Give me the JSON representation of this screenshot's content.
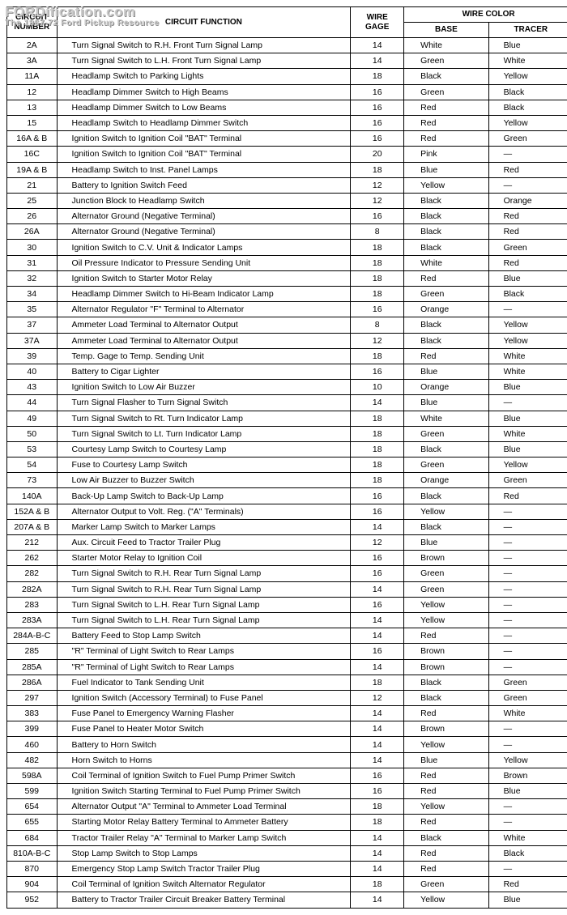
{
  "watermark": {
    "line1": "FORDification.com",
    "line2": "The 1967-72 Ford Pickup Resource"
  },
  "headers": {
    "circuit_number": "CIRCUIT\nNUMBER",
    "circuit_function": "CIRCUIT FUNCTION",
    "wire_gage": "WIRE\nGAGE",
    "wire_color": "WIRE COLOR",
    "base": "BASE",
    "tracer": "TRACER"
  },
  "rows": [
    {
      "num": "2A",
      "func": "Turn Signal Switch to R.H. Front Turn Signal Lamp",
      "gage": "14",
      "base": "White",
      "tracer": "Blue"
    },
    {
      "num": "3A",
      "func": "Turn Signal Switch to L.H. Front Turn Signal Lamp",
      "gage": "14",
      "base": "Green",
      "tracer": "White"
    },
    {
      "num": "11A",
      "func": "Headlamp Switch to Parking Lights",
      "gage": "18",
      "base": "Black",
      "tracer": "Yellow"
    },
    {
      "num": "12",
      "func": "Headlamp Dimmer Switch to High Beams",
      "gage": "16",
      "base": "Green",
      "tracer": "Black"
    },
    {
      "num": "13",
      "func": "Headlamp Dimmer Switch to Low Beams",
      "gage": "16",
      "base": "Red",
      "tracer": "Black"
    },
    {
      "num": "15",
      "func": "Headlamp Switch to Headlamp Dimmer Switch",
      "gage": "16",
      "base": "Red",
      "tracer": "Yellow"
    },
    {
      "num": "16A & B",
      "func": "Ignition Switch to Ignition Coil \"BAT\" Terminal",
      "gage": "16",
      "base": "Red",
      "tracer": "Green"
    },
    {
      "num": "16C",
      "func": "Ignition Switch to Ignition Coil \"BAT\" Terminal",
      "gage": "20",
      "base": "Pink",
      "tracer": "—"
    },
    {
      "num": "19A & B",
      "func": "Headlamp Switch to Inst. Panel Lamps",
      "gage": "18",
      "base": "Blue",
      "tracer": "Red"
    },
    {
      "num": "21",
      "func": "Battery to Ignition Switch Feed",
      "gage": "12",
      "base": "Yellow",
      "tracer": "—"
    },
    {
      "num": "25",
      "func": "Junction Block to Headlamp Switch",
      "gage": "12",
      "base": "Black",
      "tracer": "Orange"
    },
    {
      "num": "26",
      "func": "Alternator Ground (Negative Terminal)",
      "gage": "16",
      "base": "Black",
      "tracer": "Red"
    },
    {
      "num": "26A",
      "func": "Alternator Ground (Negative Terminal)",
      "gage": "8",
      "base": "Black",
      "tracer": "Red"
    },
    {
      "num": "30",
      "func": "Ignition Switch to C.V. Unit & Indicator Lamps",
      "gage": "18",
      "base": "Black",
      "tracer": "Green"
    },
    {
      "num": "31",
      "func": "Oil Pressure Indicator to Pressure Sending Unit",
      "gage": "18",
      "base": "White",
      "tracer": "Red"
    },
    {
      "num": "32",
      "func": "Ignition Switch to Starter Motor Relay",
      "gage": "18",
      "base": "Red",
      "tracer": "Blue"
    },
    {
      "num": "34",
      "func": "Headlamp Dimmer Switch to Hi-Beam Indicator Lamp",
      "gage": "18",
      "base": "Green",
      "tracer": "Black"
    },
    {
      "num": "35",
      "func": "Alternator Regulator \"F\" Terminal to Alternator",
      "gage": "16",
      "base": "Orange",
      "tracer": "—"
    },
    {
      "num": "37",
      "func": "Ammeter Load Terminal to Alternator Output",
      "gage": "8",
      "base": "Black",
      "tracer": "Yellow"
    },
    {
      "num": "37A",
      "func": "Ammeter Load Terminal to Alternator Output",
      "gage": "12",
      "base": "Black",
      "tracer": "Yellow"
    },
    {
      "num": "39",
      "func": "Temp. Gage to Temp. Sending Unit",
      "gage": "18",
      "base": "Red",
      "tracer": "White"
    },
    {
      "num": "40",
      "func": "Battery to Cigar Lighter",
      "gage": "16",
      "base": "Blue",
      "tracer": "White"
    },
    {
      "num": "43",
      "func": "Ignition Switch to Low Air Buzzer",
      "gage": "10",
      "base": "Orange",
      "tracer": "Blue"
    },
    {
      "num": "44",
      "func": "Turn Signal Flasher to Turn Signal Switch",
      "gage": "14",
      "base": "Blue",
      "tracer": "—"
    },
    {
      "num": "49",
      "func": "Turn Signal Switch to Rt. Turn Indicator Lamp",
      "gage": "18",
      "base": "White",
      "tracer": "Blue"
    },
    {
      "num": "50",
      "func": "Turn Signal Switch to Lt. Turn Indicator Lamp",
      "gage": "18",
      "base": "Green",
      "tracer": "White"
    },
    {
      "num": "53",
      "func": "Courtesy Lamp Switch to Courtesy Lamp",
      "gage": "18",
      "base": "Black",
      "tracer": "Blue"
    },
    {
      "num": "54",
      "func": "Fuse to Courtesy Lamp Switch",
      "gage": "18",
      "base": "Green",
      "tracer": "Yellow"
    },
    {
      "num": "73",
      "func": "Low Air Buzzer to Buzzer Switch",
      "gage": "18",
      "base": "Orange",
      "tracer": "Green"
    },
    {
      "num": "140A",
      "func": "Back-Up Lamp Switch to Back-Up Lamp",
      "gage": "16",
      "base": "Black",
      "tracer": "Red"
    },
    {
      "num": "152A & B",
      "func": "Alternator Output to Volt. Reg. (\"A\" Terminals)",
      "gage": "16",
      "base": "Yellow",
      "tracer": "—"
    },
    {
      "num": "207A & B",
      "func": "Marker Lamp Switch to Marker Lamps",
      "gage": "14",
      "base": "Black",
      "tracer": "—"
    },
    {
      "num": "212",
      "func": "Aux. Circuit Feed to Tractor Trailer Plug",
      "gage": "12",
      "base": "Blue",
      "tracer": "—"
    },
    {
      "num": "262",
      "func": "Starter Motor Relay to Ignition Coil",
      "gage": "16",
      "base": "Brown",
      "tracer": "—"
    },
    {
      "num": "282",
      "func": "Turn Signal Switch to R.H. Rear Turn Signal Lamp",
      "gage": "16",
      "base": "Green",
      "tracer": "—"
    },
    {
      "num": "282A",
      "func": "Turn Signal Switch to R.H. Rear Turn Signal Lamp",
      "gage": "14",
      "base": "Green",
      "tracer": "—"
    },
    {
      "num": "283",
      "func": "Turn Signal Switch to L.H. Rear Turn Signal Lamp",
      "gage": "16",
      "base": "Yellow",
      "tracer": "—"
    },
    {
      "num": "283A",
      "func": "Turn Signal Switch to L.H. Rear Turn Signal Lamp",
      "gage": "14",
      "base": "Yellow",
      "tracer": "—"
    },
    {
      "num": "284A-B-C",
      "func": "Battery Feed to Stop Lamp Switch",
      "gage": "14",
      "base": "Red",
      "tracer": "—"
    },
    {
      "num": "285",
      "func": "\"R\" Terminal of Light Switch to Rear Lamps",
      "gage": "16",
      "base": "Brown",
      "tracer": "—"
    },
    {
      "num": "285A",
      "func": "\"R\" Terminal of Light Switch to Rear Lamps",
      "gage": "14",
      "base": "Brown",
      "tracer": "—"
    },
    {
      "num": "286A",
      "func": "Fuel Indicator to Tank Sending Unit",
      "gage": "18",
      "base": "Black",
      "tracer": "Green"
    },
    {
      "num": "297",
      "func": "Ignition Switch (Accessory Terminal) to Fuse Panel",
      "gage": "12",
      "base": "Black",
      "tracer": "Green"
    },
    {
      "num": "383",
      "func": "Fuse Panel to Emergency Warning Flasher",
      "gage": "14",
      "base": "Red",
      "tracer": "White"
    },
    {
      "num": "399",
      "func": "Fuse Panel to Heater Motor Switch",
      "gage": "14",
      "base": "Brown",
      "tracer": "—"
    },
    {
      "num": "460",
      "func": "Battery to Horn Switch",
      "gage": "14",
      "base": "Yellow",
      "tracer": "—"
    },
    {
      "num": "482",
      "func": "Horn Switch to Horns",
      "gage": "14",
      "base": "Blue",
      "tracer": "Yellow"
    },
    {
      "num": "598A",
      "func": "Coil Terminal of Ignition Switch to Fuel Pump Primer Switch",
      "gage": "16",
      "base": "Red",
      "tracer": "Brown"
    },
    {
      "num": "599",
      "func": "Ignition Switch Starting Terminal to Fuel Pump Primer Switch",
      "gage": "16",
      "base": "Red",
      "tracer": "Blue"
    },
    {
      "num": "654",
      "func": "Alternator Output \"A\" Terminal to Ammeter Load Terminal",
      "gage": "18",
      "base": "Yellow",
      "tracer": "—"
    },
    {
      "num": "655",
      "func": "Starting Motor Relay Battery Terminal to Ammeter Battery",
      "gage": "18",
      "base": "Red",
      "tracer": "—"
    },
    {
      "num": "684",
      "func": "Tractor Trailer Relay \"A\" Terminal to Marker Lamp Switch",
      "gage": "14",
      "base": "Black",
      "tracer": "White"
    },
    {
      "num": "810A-B-C",
      "func": "Stop Lamp Switch to Stop Lamps",
      "gage": "14",
      "base": "Red",
      "tracer": "Black"
    },
    {
      "num": "870",
      "func": "Emergency Stop Lamp Switch Tractor Trailer Plug",
      "gage": "14",
      "base": "Red",
      "tracer": "—"
    },
    {
      "num": "904",
      "func": "Coil Terminal of Ignition Switch Alternator Regulator",
      "gage": "18",
      "base": "Green",
      "tracer": "Red"
    },
    {
      "num": "952",
      "func": "Battery to Tractor Trailer Circuit Breaker Battery Terminal",
      "gage": "14",
      "base": "Yellow",
      "tracer": "Blue"
    }
  ]
}
